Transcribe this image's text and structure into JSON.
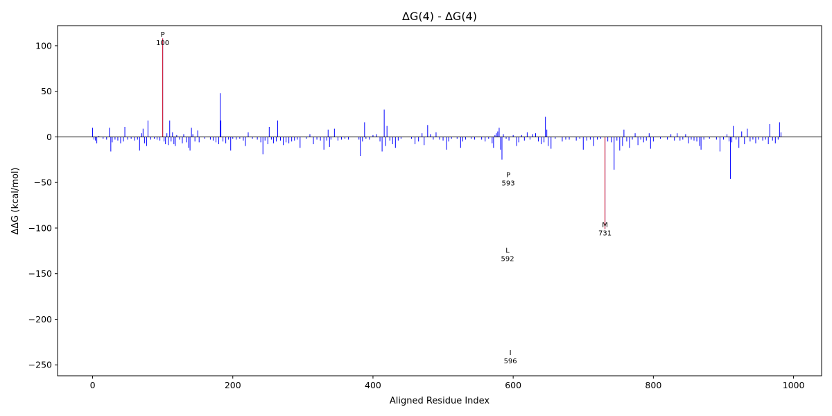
{
  "chart_data": {
    "type": "bar",
    "title": "ΔG(4) - ΔG(4)",
    "xlabel": "Aligned Residue Index",
    "ylabel": "ΔΔG (kcal/mol)",
    "xlim": [
      -50,
      1040
    ],
    "ylim": [
      -262,
      122
    ],
    "xticks": [
      0,
      200,
      400,
      600,
      800,
      1000
    ],
    "yticks": [
      100,
      50,
      0,
      -50,
      -100,
      -150,
      -200,
      -250
    ],
    "grid": false,
    "legend": "none",
    "colors": {
      "normal": "#0000ff",
      "highlight": "#e41a1c",
      "axis": "#000000"
    },
    "highlighted_bars": [
      {
        "x": 100,
        "y": 108
      },
      {
        "x": 731,
        "y": -101
      }
    ],
    "annotations": [
      {
        "residue": "P",
        "index": "100",
        "x": 100,
        "y": 110
      },
      {
        "residue": "P",
        "index": "593",
        "x": 593,
        "y": -44
      },
      {
        "residue": "M",
        "index": "731",
        "x": 731,
        "y": -99
      },
      {
        "residue": "L",
        "index": "592",
        "x": 592,
        "y": -127
      },
      {
        "residue": "I",
        "index": "596",
        "x": 596,
        "y": -239
      }
    ],
    "bars": [
      [
        0,
        10
      ],
      [
        2,
        -3
      ],
      [
        4,
        -4
      ],
      [
        6,
        -7
      ],
      [
        9,
        1
      ],
      [
        15,
        -2
      ],
      [
        20,
        -3
      ],
      [
        24,
        10
      ],
      [
        26,
        -16
      ],
      [
        28,
        -6
      ],
      [
        32,
        -3
      ],
      [
        36,
        -4
      ],
      [
        40,
        -7
      ],
      [
        44,
        -5
      ],
      [
        46,
        11
      ],
      [
        50,
        -3
      ],
      [
        55,
        -2
      ],
      [
        60,
        -4
      ],
      [
        64,
        -3
      ],
      [
        67,
        -15
      ],
      [
        70,
        4
      ],
      [
        72,
        9
      ],
      [
        74,
        -7
      ],
      [
        77,
        -10
      ],
      [
        79,
        18
      ],
      [
        83,
        -3
      ],
      [
        88,
        -2
      ],
      [
        92,
        -3
      ],
      [
        96,
        -4
      ],
      [
        100,
        108
      ],
      [
        102,
        -5
      ],
      [
        104,
        -8
      ],
      [
        106,
        4
      ],
      [
        108,
        -9
      ],
      [
        110,
        18
      ],
      [
        112,
        -5
      ],
      [
        114,
        5
      ],
      [
        116,
        -8
      ],
      [
        118,
        -10
      ],
      [
        120,
        2
      ],
      [
        124,
        -3
      ],
      [
        128,
        -7
      ],
      [
        130,
        3
      ],
      [
        134,
        -6
      ],
      [
        137,
        -12
      ],
      [
        139,
        -15
      ],
      [
        141,
        10
      ],
      [
        143,
        3
      ],
      [
        146,
        -5
      ],
      [
        150,
        7
      ],
      [
        152,
        -6
      ],
      [
        160,
        -2
      ],
      [
        168,
        -3
      ],
      [
        172,
        -4
      ],
      [
        176,
        -6
      ],
      [
        180,
        -8
      ],
      [
        182,
        48
      ],
      [
        183,
        18
      ],
      [
        186,
        -5
      ],
      [
        190,
        -7
      ],
      [
        194,
        -3
      ],
      [
        197,
        -15
      ],
      [
        200,
        -2
      ],
      [
        205,
        -3
      ],
      [
        210,
        -2
      ],
      [
        215,
        -4
      ],
      [
        218,
        -10
      ],
      [
        222,
        5
      ],
      [
        228,
        -2
      ],
      [
        235,
        -3
      ],
      [
        240,
        -6
      ],
      [
        243,
        -19
      ],
      [
        246,
        -4
      ],
      [
        250,
        -8
      ],
      [
        252,
        11
      ],
      [
        255,
        -3
      ],
      [
        258,
        -7
      ],
      [
        262,
        -5
      ],
      [
        264,
        18
      ],
      [
        268,
        -4
      ],
      [
        272,
        -9
      ],
      [
        276,
        -6
      ],
      [
        280,
        -7
      ],
      [
        284,
        -5
      ],
      [
        288,
        -4
      ],
      [
        292,
        -3
      ],
      [
        296,
        -12
      ],
      [
        305,
        -2
      ],
      [
        310,
        3
      ],
      [
        315,
        -8
      ],
      [
        320,
        -3
      ],
      [
        325,
        -4
      ],
      [
        330,
        -14
      ],
      [
        334,
        -4
      ],
      [
        336,
        8
      ],
      [
        338,
        -11
      ],
      [
        340,
        -3
      ],
      [
        345,
        9
      ],
      [
        350,
        -4
      ],
      [
        355,
        -3
      ],
      [
        360,
        -2
      ],
      [
        365,
        -3
      ],
      [
        380,
        -3
      ],
      [
        382,
        -21
      ],
      [
        385,
        -5
      ],
      [
        388,
        16
      ],
      [
        390,
        -2
      ],
      [
        395,
        -3
      ],
      [
        400,
        2
      ],
      [
        405,
        3
      ],
      [
        410,
        -5
      ],
      [
        413,
        -16
      ],
      [
        416,
        30
      ],
      [
        418,
        -10
      ],
      [
        420,
        12
      ],
      [
        424,
        -4
      ],
      [
        428,
        -8
      ],
      [
        432,
        -12
      ],
      [
        436,
        -4
      ],
      [
        440,
        -2
      ],
      [
        455,
        -2
      ],
      [
        460,
        -8
      ],
      [
        465,
        -5
      ],
      [
        470,
        4
      ],
      [
        473,
        -9
      ],
      [
        478,
        13
      ],
      [
        482,
        3
      ],
      [
        486,
        -3
      ],
      [
        490,
        5
      ],
      [
        495,
        -3
      ],
      [
        500,
        -4
      ],
      [
        505,
        -14
      ],
      [
        508,
        -5
      ],
      [
        512,
        -2
      ],
      [
        520,
        -2
      ],
      [
        525,
        -12
      ],
      [
        528,
        -5
      ],
      [
        532,
        -3
      ],
      [
        540,
        -2
      ],
      [
        545,
        -3
      ],
      [
        555,
        -3
      ],
      [
        560,
        -5
      ],
      [
        565,
        -2
      ],
      [
        570,
        -7
      ],
      [
        572,
        -12
      ],
      [
        574,
        2
      ],
      [
        576,
        4
      ],
      [
        578,
        6
      ],
      [
        580,
        10
      ],
      [
        582,
        -14
      ],
      [
        584,
        -25
      ],
      [
        586,
        3
      ],
      [
        590,
        -2
      ],
      [
        594,
        -4
      ],
      [
        600,
        2
      ],
      [
        605,
        -10
      ],
      [
        608,
        -6
      ],
      [
        612,
        2
      ],
      [
        616,
        -4
      ],
      [
        620,
        5
      ],
      [
        624,
        -3
      ],
      [
        628,
        3
      ],
      [
        632,
        4
      ],
      [
        636,
        -5
      ],
      [
        640,
        -8
      ],
      [
        644,
        -6
      ],
      [
        646,
        22
      ],
      [
        648,
        8
      ],
      [
        650,
        -10
      ],
      [
        654,
        -13
      ],
      [
        660,
        -2
      ],
      [
        670,
        -5
      ],
      [
        675,
        -3
      ],
      [
        680,
        -3
      ],
      [
        690,
        -4
      ],
      [
        695,
        -2
      ],
      [
        700,
        -14
      ],
      [
        705,
        -4
      ],
      [
        710,
        -3
      ],
      [
        715,
        -10
      ],
      [
        720,
        -3
      ],
      [
        725,
        -2
      ],
      [
        731,
        -101
      ],
      [
        735,
        -5
      ],
      [
        740,
        -6
      ],
      [
        744,
        -36
      ],
      [
        748,
        -4
      ],
      [
        752,
        -15
      ],
      [
        756,
        -10
      ],
      [
        758,
        8
      ],
      [
        762,
        -5
      ],
      [
        766,
        -12
      ],
      [
        770,
        -3
      ],
      [
        774,
        4
      ],
      [
        778,
        -9
      ],
      [
        782,
        -3
      ],
      [
        786,
        -6
      ],
      [
        790,
        -4
      ],
      [
        794,
        4
      ],
      [
        796,
        -13
      ],
      [
        800,
        -5
      ],
      [
        810,
        -2
      ],
      [
        820,
        -3
      ],
      [
        825,
        3
      ],
      [
        830,
        -4
      ],
      [
        834,
        4
      ],
      [
        838,
        -4
      ],
      [
        842,
        -3
      ],
      [
        846,
        3
      ],
      [
        850,
        -7
      ],
      [
        854,
        -3
      ],
      [
        858,
        -4
      ],
      [
        862,
        -5
      ],
      [
        866,
        -10
      ],
      [
        868,
        -14
      ],
      [
        872,
        -3
      ],
      [
        880,
        -2
      ],
      [
        890,
        -3
      ],
      [
        895,
        -16
      ],
      [
        900,
        -3
      ],
      [
        905,
        3
      ],
      [
        908,
        -5
      ],
      [
        910,
        -46
      ],
      [
        912,
        -6
      ],
      [
        914,
        12
      ],
      [
        918,
        -3
      ],
      [
        922,
        -12
      ],
      [
        926,
        6
      ],
      [
        930,
        -8
      ],
      [
        934,
        9
      ],
      [
        938,
        -5
      ],
      [
        942,
        -3
      ],
      [
        946,
        -7
      ],
      [
        950,
        -3
      ],
      [
        956,
        -4
      ],
      [
        960,
        -3
      ],
      [
        964,
        -8
      ],
      [
        966,
        14
      ],
      [
        970,
        -4
      ],
      [
        974,
        -7
      ],
      [
        978,
        -3
      ],
      [
        980,
        16
      ],
      [
        982,
        5
      ]
    ]
  }
}
